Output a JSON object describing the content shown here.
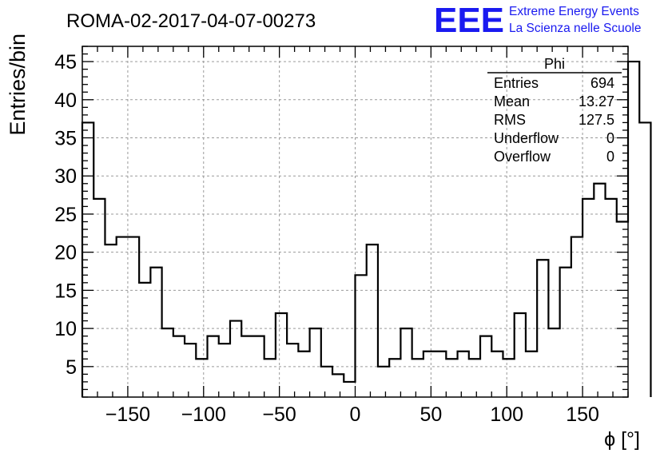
{
  "chart_data": {
    "type": "histogram",
    "title": "ROMA-02-2017-04-07-00273",
    "xlabel": "ϕ [°]",
    "ylabel": "Entries/bin",
    "xlim": [
      -180,
      180
    ],
    "ylim": [
      1,
      47
    ],
    "grid": true,
    "x_ticks": [
      -150,
      -100,
      -50,
      0,
      50,
      100,
      150
    ],
    "y_ticks": [
      5,
      10,
      15,
      20,
      25,
      30,
      35,
      40,
      45
    ],
    "bin_edges_start": -180,
    "bin_width": 7.5,
    "values": [
      37,
      27,
      21,
      22,
      22,
      16,
      18,
      10,
      9,
      8,
      6,
      9,
      8,
      11,
      9,
      9,
      6,
      12,
      8,
      7,
      10,
      5,
      4,
      3,
      17,
      21,
      5,
      6,
      10,
      6,
      7,
      7,
      6,
      7,
      6,
      9,
      7,
      6,
      12,
      7,
      19,
      10,
      18,
      22,
      27,
      29,
      27,
      24,
      45,
      37
    ],
    "stats_box": {
      "title": "Phi",
      "rows": [
        {
          "label": "Entries",
          "value": "694"
        },
        {
          "label": "Mean",
          "value": "13.27"
        },
        {
          "label": "RMS",
          "value": "127.5"
        },
        {
          "label": "Underflow",
          "value": "0"
        },
        {
          "label": "Overflow",
          "value": "0"
        }
      ],
      "placement": "top-right"
    }
  },
  "logo": {
    "mark": "EEE",
    "line1": "Extreme Energy Events",
    "line2": "La Scienza nelle Scuole",
    "color": "#1a1af0"
  }
}
